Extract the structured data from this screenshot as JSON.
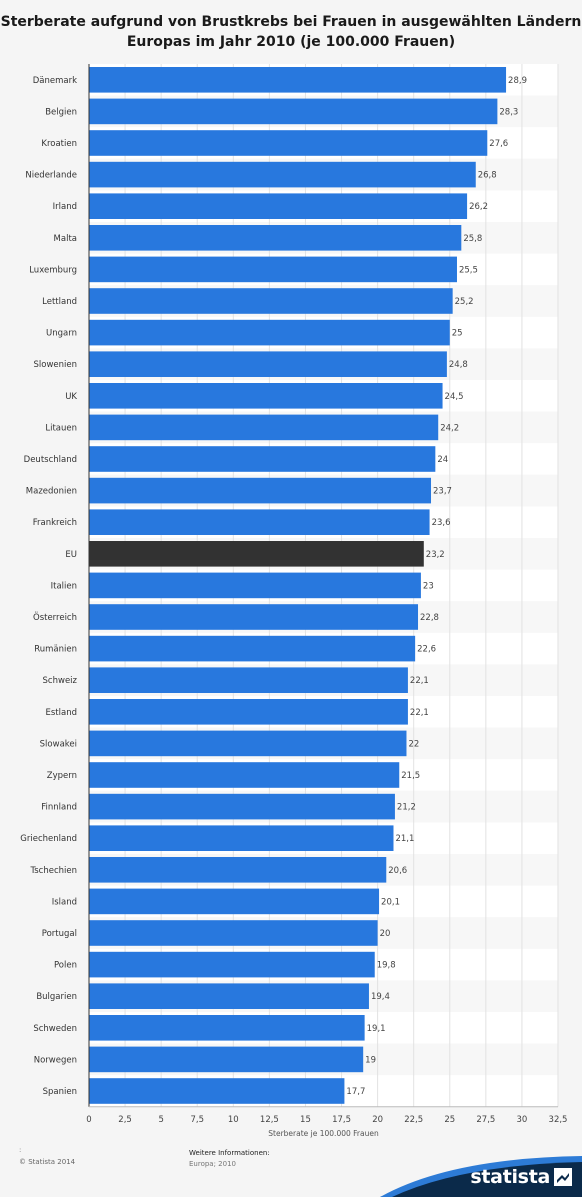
{
  "chart_data": {
    "type": "bar",
    "orientation": "horizontal",
    "title": "Sterberate aufgrund von Brustkrebs bei Frauen in ausgewählten Ländern Europas im Jahr 2010 (je 100.000 Frauen)",
    "xlabel": "Sterberate je 100.000 Frauen",
    "ylabel": "",
    "xlim": [
      0,
      32.5
    ],
    "x_ticks": [
      0,
      2.5,
      5,
      7.5,
      10,
      12.5,
      15,
      17.5,
      20,
      22.5,
      25,
      27.5,
      30,
      32.5
    ],
    "x_tick_labels": [
      "0",
      "2,5",
      "5",
      "7,5",
      "10",
      "12,5",
      "15",
      "17,5",
      "20",
      "22,5",
      "25",
      "27,5",
      "30",
      "32,5"
    ],
    "grid": true,
    "bar_color": "#2878de",
    "highlight_color": "#323232",
    "highlight_category": "EU",
    "categories": [
      "Dänemark",
      "Belgien",
      "Kroatien",
      "Niederlande",
      "Irland",
      "Malta",
      "Luxemburg",
      "Lettland",
      "Ungarn",
      "Slowenien",
      "UK",
      "Litauen",
      "Deutschland",
      "Mazedonien",
      "Frankreich",
      "EU",
      "Italien",
      "Österreich",
      "Rumänien",
      "Schweiz",
      "Estland",
      "Slowakei",
      "Zypern",
      "Finnland",
      "Griechenland",
      "Tschechien",
      "Island",
      "Portugal",
      "Polen",
      "Bulgarien",
      "Schweden",
      "Norwegen",
      "Spanien"
    ],
    "values": [
      28.9,
      28.3,
      27.6,
      26.8,
      26.2,
      25.8,
      25.5,
      25.2,
      25,
      24.8,
      24.5,
      24.2,
      24,
      23.7,
      23.6,
      23.2,
      23,
      22.8,
      22.6,
      22.1,
      22.1,
      22,
      21.5,
      21.2,
      21.1,
      20.6,
      20.1,
      20,
      19.8,
      19.4,
      19.1,
      19,
      17.7
    ],
    "value_labels": [
      "28,9",
      "28,3",
      "27,6",
      "26,8",
      "26,2",
      "25,8",
      "25,5",
      "25,2",
      "25",
      "24,8",
      "24,5",
      "24,2",
      "24",
      "23,7",
      "23,6",
      "23,2",
      "23",
      "22,8",
      "22,6",
      "22,1",
      "22,1",
      "22",
      "21,5",
      "21,2",
      "21,1",
      "20,6",
      "20,1",
      "20",
      "19,8",
      "19,4",
      "19,1",
      "19",
      "17,7"
    ]
  },
  "footer": {
    "dots": ":",
    "copyright": "© Statista 2014",
    "info_heading": "Weitere Informationen:",
    "info_text": "Europa; 2010",
    "brand": "statista"
  },
  "colors": {
    "brand_dark": "#0b2a4a",
    "brand_accent": "#2d7bd6"
  }
}
